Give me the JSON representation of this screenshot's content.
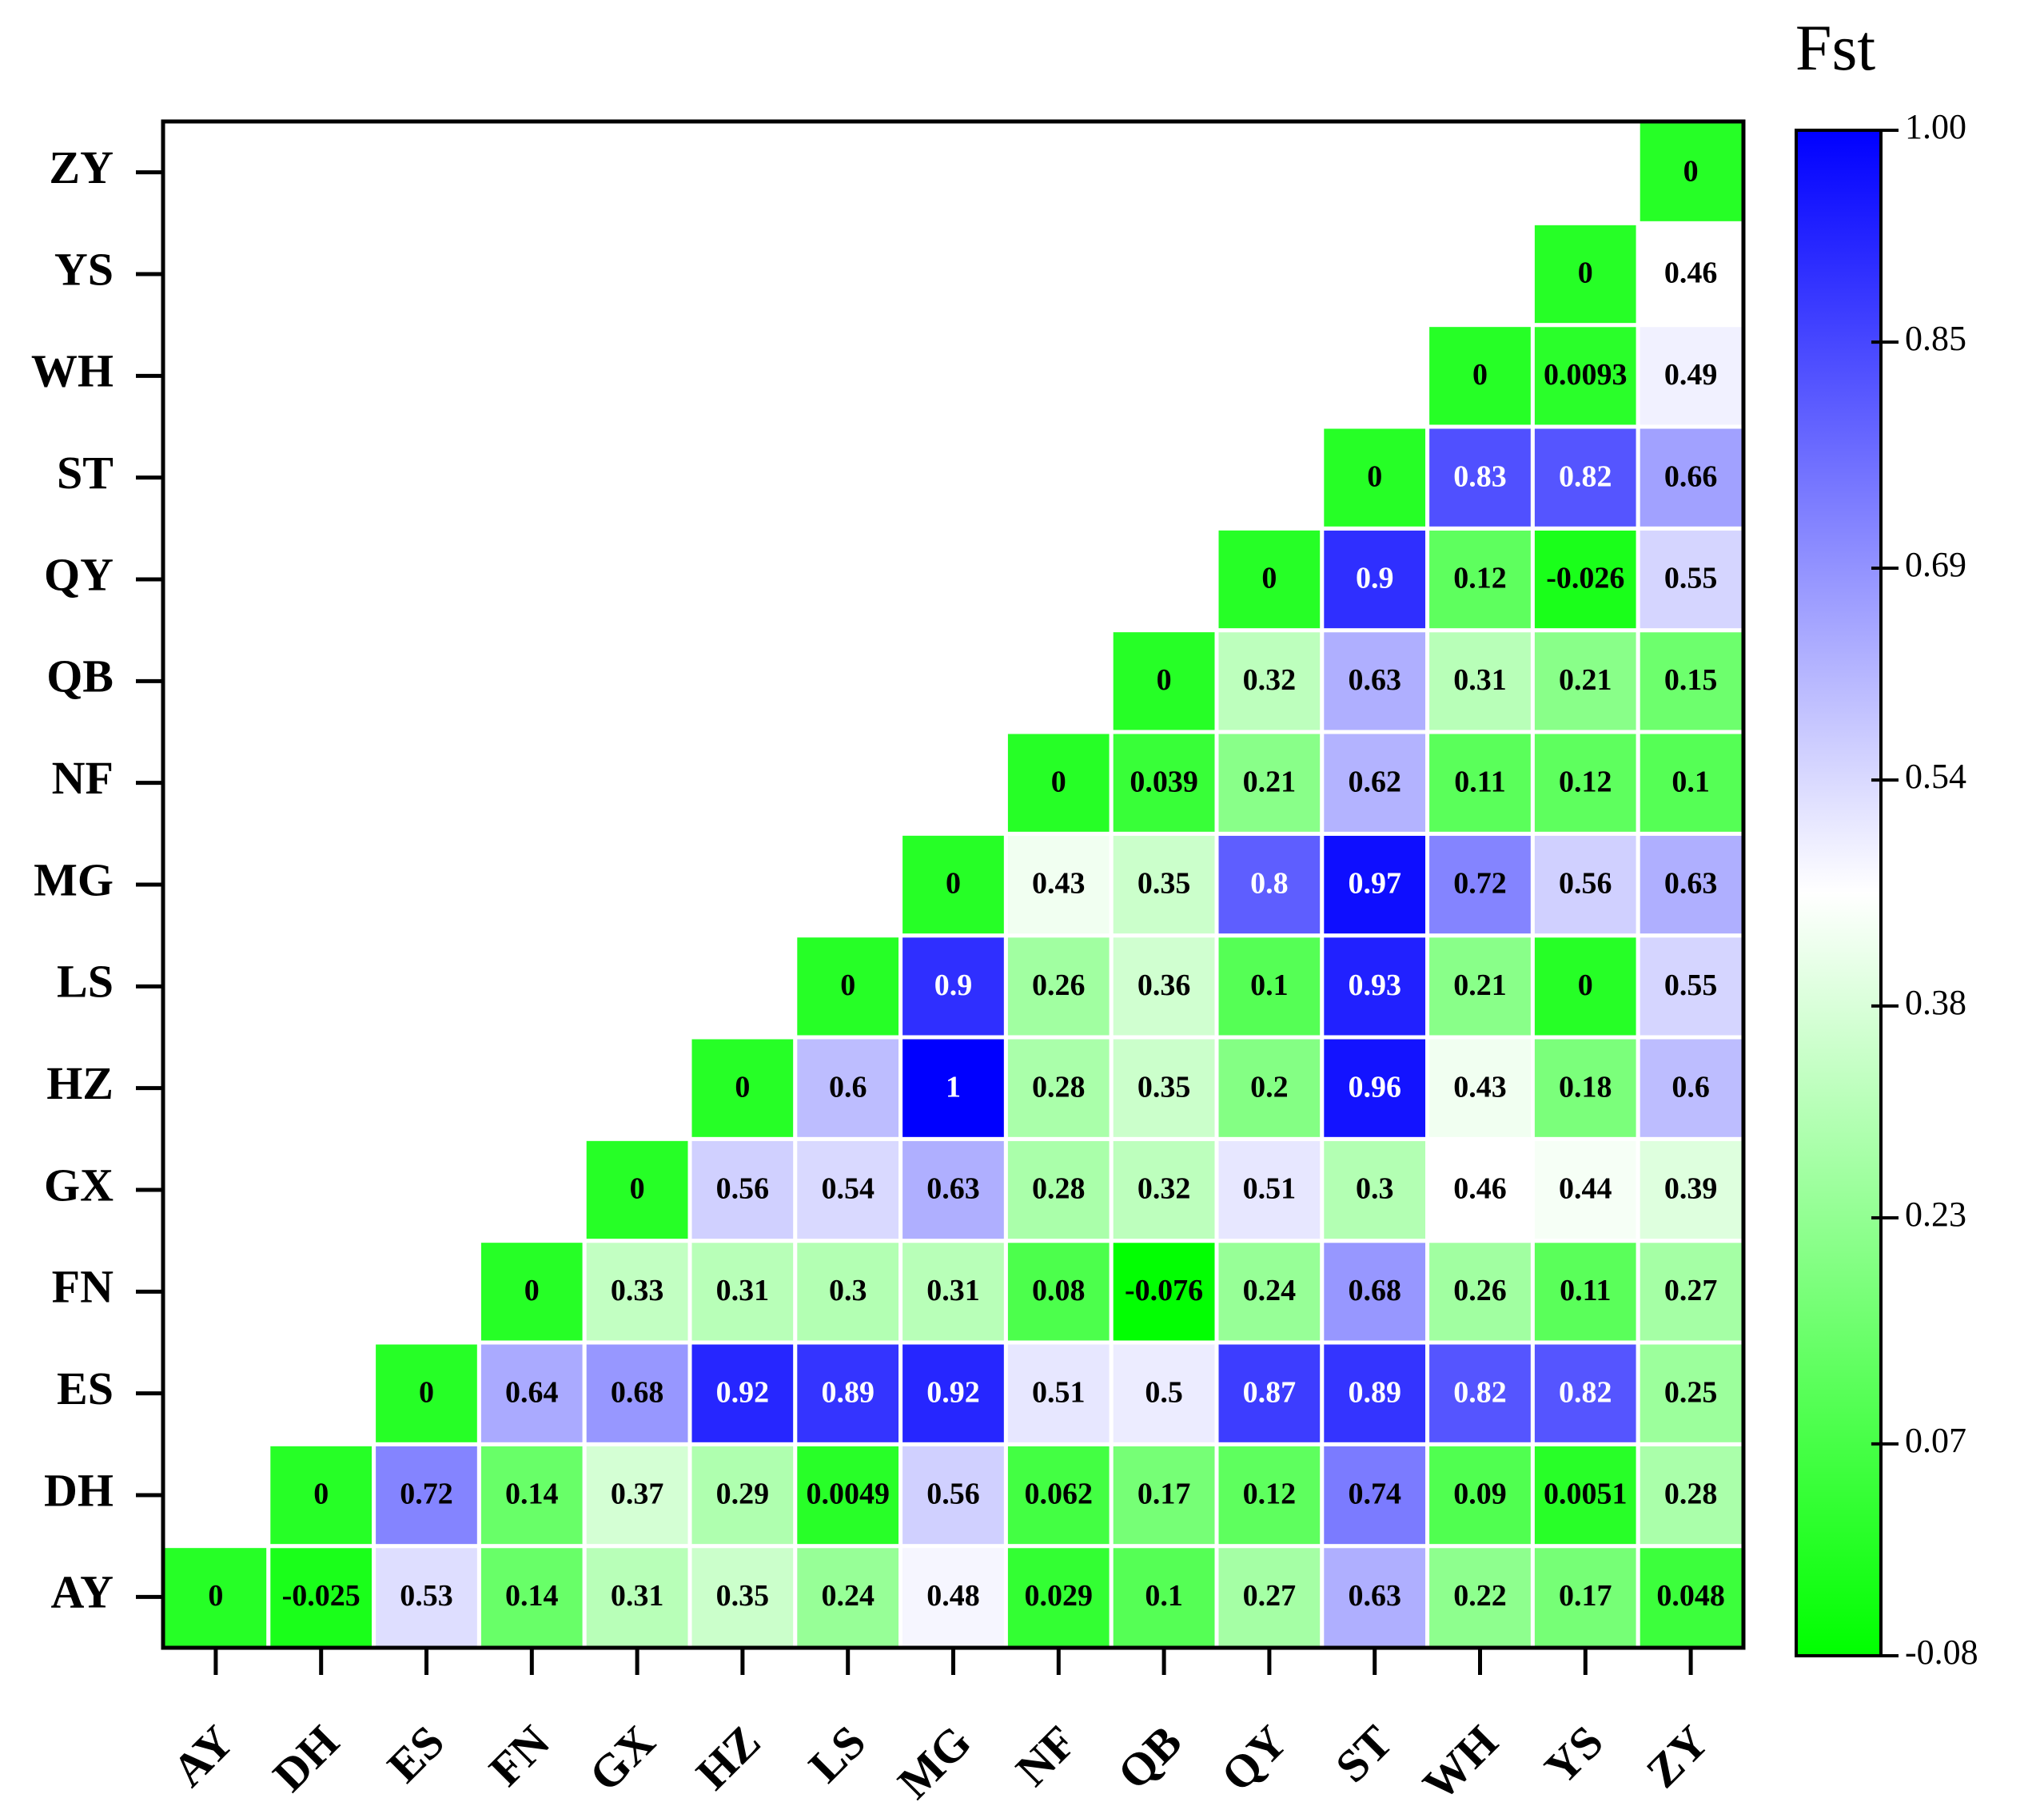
{
  "chart_data": {
    "type": "heatmap",
    "colorbar_title": "Fst",
    "x_categories": [
      "AY",
      "DH",
      "ES",
      "FN",
      "GX",
      "HZ",
      "LS",
      "MG",
      "NF",
      "QB",
      "QY",
      "ST",
      "WH",
      "YS",
      "ZY"
    ],
    "y_categories": [
      "AY",
      "DH",
      "ES",
      "FN",
      "GX",
      "HZ",
      "LS",
      "MG",
      "NF",
      "QB",
      "QY",
      "ST",
      "WH",
      "YS",
      "ZY"
    ],
    "values": [
      [
        0,
        -0.025,
        0.53,
        0.14,
        0.31,
        0.35,
        0.24,
        0.48,
        0.029,
        0.1,
        0.27,
        0.63,
        0.22,
        0.17,
        0.048
      ],
      [
        null,
        0,
        0.72,
        0.14,
        0.37,
        0.29,
        0.0049,
        0.56,
        0.062,
        0.17,
        0.12,
        0.74,
        0.09,
        0.0051,
        0.28
      ],
      [
        null,
        null,
        0,
        0.64,
        0.68,
        0.92,
        0.89,
        0.92,
        0.51,
        0.5,
        0.87,
        0.89,
        0.82,
        0.82,
        0.25
      ],
      [
        null,
        null,
        null,
        0,
        0.33,
        0.31,
        0.3,
        0.31,
        0.08,
        -0.076,
        0.24,
        0.68,
        0.26,
        0.11,
        0.27
      ],
      [
        null,
        null,
        null,
        null,
        0,
        0.56,
        0.54,
        0.63,
        0.28,
        0.32,
        0.51,
        0.3,
        0.46,
        0.44,
        0.39
      ],
      [
        null,
        null,
        null,
        null,
        null,
        0,
        0.6,
        1,
        0.28,
        0.35,
        0.2,
        0.96,
        0.43,
        0.18,
        0.6
      ],
      [
        null,
        null,
        null,
        null,
        null,
        null,
        0,
        0.9,
        0.26,
        0.36,
        0.1,
        0.93,
        0.21,
        0,
        0.55
      ],
      [
        null,
        null,
        null,
        null,
        null,
        null,
        null,
        0,
        0.43,
        0.35,
        0.8,
        0.97,
        0.72,
        0.56,
        0.63
      ],
      [
        null,
        null,
        null,
        null,
        null,
        null,
        null,
        null,
        0,
        0.039,
        0.21,
        0.62,
        0.11,
        0.12,
        0.1
      ],
      [
        null,
        null,
        null,
        null,
        null,
        null,
        null,
        null,
        null,
        0,
        0.32,
        0.63,
        0.31,
        0.21,
        0.15
      ],
      [
        null,
        null,
        null,
        null,
        null,
        null,
        null,
        null,
        null,
        null,
        0,
        0.9,
        0.12,
        -0.026,
        0.55
      ],
      [
        null,
        null,
        null,
        null,
        null,
        null,
        null,
        null,
        null,
        null,
        null,
        0,
        0.83,
        0.82,
        0.66
      ],
      [
        null,
        null,
        null,
        null,
        null,
        null,
        null,
        null,
        null,
        null,
        null,
        null,
        0,
        0.0093,
        0.49
      ],
      [
        null,
        null,
        null,
        null,
        null,
        null,
        null,
        null,
        null,
        null,
        null,
        null,
        null,
        0,
        0.46
      ],
      [
        null,
        null,
        null,
        null,
        null,
        null,
        null,
        null,
        null,
        null,
        null,
        null,
        null,
        null,
        0
      ]
    ],
    "clim": [
      -0.08,
      1
    ],
    "cticks": [
      -0.08,
      0.07,
      0.23,
      0.38,
      0.54,
      0.69,
      0.85,
      {
        "value": 1,
        "label": "1.00"
      }
    ],
    "colormap": {
      "stops": [
        -0.08,
        0.46,
        1
      ],
      "colors": [
        "#00ff00",
        "#ffffff",
        "#0000ff"
      ]
    }
  }
}
